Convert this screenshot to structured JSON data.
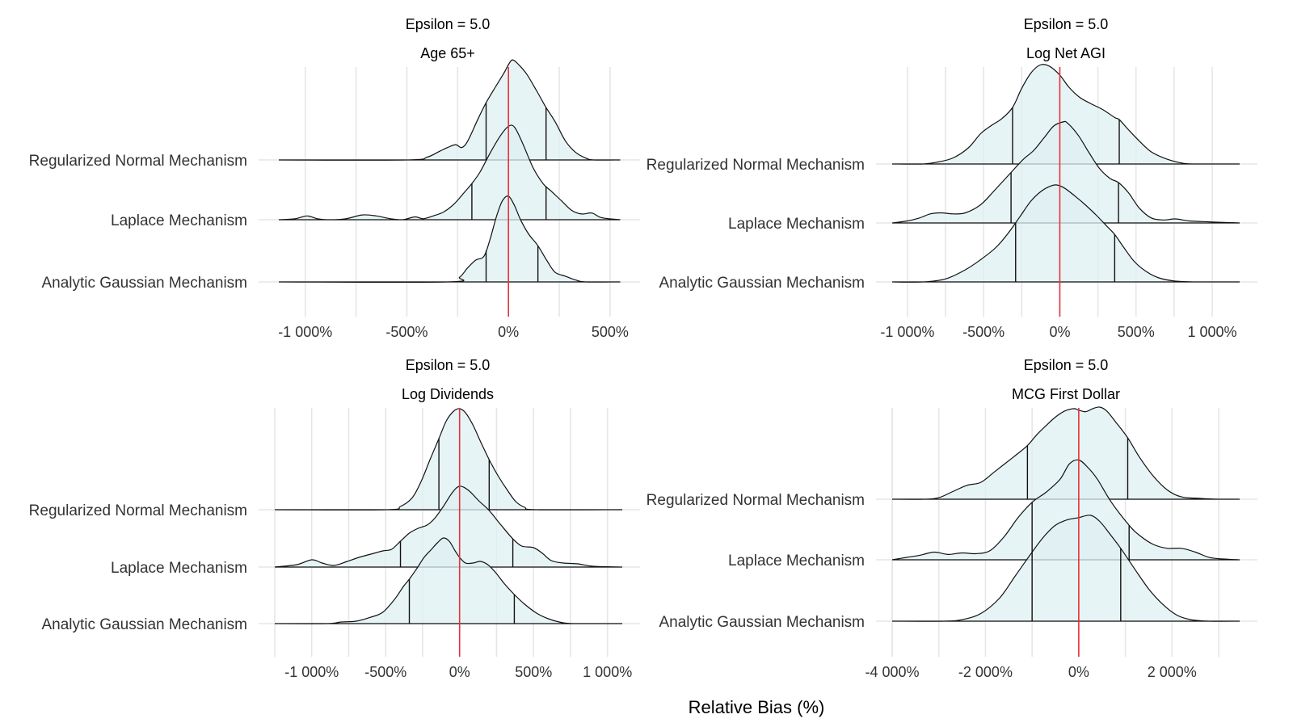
{
  "chart_data": [
    {
      "type": "ridgeline",
      "title": "Epsilon = 5.0",
      "subtitle": "Age 65+",
      "xlabel": "Relative Bias (%)",
      "xlim": [
        -1150,
        560
      ],
      "xticks": [
        -1000,
        -500,
        0,
        500
      ],
      "xtick_labels": [
        "-1 000%",
        "-500%",
        "0%",
        "500%"
      ],
      "minor_grid": [
        -750,
        -250,
        250
      ],
      "reference_line": 0,
      "categories": [
        "Regularized Normal Mechanism",
        "Laplace Mechanism",
        "Analytic Gaussian Mechanism"
      ],
      "series": [
        {
          "name": "Regularized Normal Mechanism",
          "quantiles": [
            -110,
            185
          ],
          "x": [
            -1130,
            -500,
            -400,
            -340,
            -300,
            -260,
            -230,
            -200,
            -150,
            -110,
            -60,
            -20,
            0,
            20,
            50,
            90,
            140,
            185,
            230,
            280,
            330,
            380,
            420,
            550
          ],
          "y": [
            0,
            0,
            0.03,
            0.09,
            0.13,
            0.16,
            0.13,
            0.2,
            0.43,
            0.6,
            0.78,
            0.92,
            1.0,
            1.05,
            1.0,
            0.9,
            0.72,
            0.55,
            0.4,
            0.2,
            0.08,
            0.02,
            0,
            0
          ]
        },
        {
          "name": "Laplace Mechanism",
          "quantiles": [
            -180,
            185
          ],
          "x": [
            -1130,
            -1050,
            -990,
            -940,
            -880,
            -800,
            -720,
            -650,
            -580,
            -520,
            -460,
            -420,
            -370,
            -320,
            -270,
            -220,
            -180,
            -140,
            -90,
            -40,
            0,
            30,
            70,
            120,
            170,
            210,
            260,
            310,
            360,
            410,
            460,
            550
          ],
          "y": [
            0,
            0.01,
            0.04,
            0.01,
            0.0,
            0.01,
            0.05,
            0.04,
            0.01,
            0.0,
            0.03,
            0.01,
            0.04,
            0.08,
            0.16,
            0.28,
            0.38,
            0.5,
            0.7,
            0.88,
            0.98,
            0.97,
            0.8,
            0.55,
            0.38,
            0.3,
            0.2,
            0.1,
            0.06,
            0.07,
            0.02,
            0
          ]
        },
        {
          "name": "Analytic Gaussian Mechanism",
          "quantiles": [
            -110,
            145
          ],
          "x": [
            -1130,
            -300,
            -240,
            -200,
            -160,
            -120,
            -90,
            -60,
            -30,
            0,
            30,
            60,
            100,
            145,
            190,
            230,
            280,
            330,
            380,
            550
          ],
          "y": [
            0,
            0,
            0.05,
            0.15,
            0.23,
            0.27,
            0.45,
            0.68,
            0.85,
            0.9,
            0.8,
            0.65,
            0.5,
            0.38,
            0.22,
            0.1,
            0.06,
            0.02,
            0,
            0
          ]
        }
      ]
    },
    {
      "type": "ridgeline",
      "title": "Epsilon = 5.0",
      "subtitle": "Log Net AGI",
      "xlabel": "Relative Bias (%)",
      "xlim": [
        -1100,
        1180
      ],
      "xticks": [
        -1000,
        -500,
        0,
        500,
        1000
      ],
      "xtick_labels": [
        "-1 000%",
        "-500%",
        "0%",
        "500%",
        "1 000%"
      ],
      "minor_grid": [
        -750,
        -250,
        250,
        750
      ],
      "reference_line": 0,
      "categories": [
        "Regularized Normal Mechanism",
        "Laplace Mechanism",
        "Analytic Gaussian Mechanism"
      ],
      "series": [
        {
          "name": "Regularized Normal Mechanism",
          "quantiles": [
            -310,
            390
          ],
          "x": [
            -1100,
            -900,
            -800,
            -700,
            -600,
            -520,
            -450,
            -380,
            -310,
            -250,
            -190,
            -130,
            -70,
            0,
            60,
            130,
            200,
            280,
            360,
            390,
            450,
            520,
            600,
            700,
            800,
            900,
            1180
          ],
          "y": [
            0,
            0,
            0.02,
            0.06,
            0.16,
            0.3,
            0.38,
            0.45,
            0.56,
            0.75,
            0.9,
            0.98,
            0.97,
            0.88,
            0.76,
            0.66,
            0.6,
            0.54,
            0.46,
            0.44,
            0.34,
            0.23,
            0.12,
            0.05,
            0.01,
            0,
            0
          ]
        },
        {
          "name": "Laplace Mechanism",
          "quantiles": [
            -320,
            385
          ],
          "x": [
            -1100,
            -1000,
            -920,
            -850,
            -780,
            -700,
            -620,
            -520,
            -430,
            -320,
            -240,
            -170,
            -100,
            -40,
            20,
            50,
            120,
            190,
            260,
            330,
            385,
            450,
            520,
            600,
            680,
            760,
            850,
            1000,
            1180
          ],
          "y": [
            0,
            0.02,
            0.05,
            0.09,
            0.1,
            0.09,
            0.1,
            0.18,
            0.32,
            0.5,
            0.63,
            0.72,
            0.85,
            0.96,
            1.0,
            0.99,
            0.87,
            0.7,
            0.54,
            0.44,
            0.4,
            0.3,
            0.15,
            0.05,
            0.03,
            0.04,
            0.02,
            0.01,
            0
          ]
        },
        {
          "name": "Analytic Gaussian Mechanism",
          "quantiles": [
            -290,
            360
          ],
          "x": [
            -1100,
            -900,
            -750,
            -620,
            -520,
            -420,
            -340,
            -260,
            -190,
            -120,
            -60,
            -20,
            30,
            100,
            170,
            240,
            310,
            360,
            420,
            490,
            570,
            650,
            750,
            900,
            1180
          ],
          "y": [
            0,
            0,
            0.03,
            0.12,
            0.22,
            0.34,
            0.48,
            0.65,
            0.8,
            0.9,
            0.95,
            0.96,
            0.93,
            0.85,
            0.76,
            0.66,
            0.55,
            0.47,
            0.34,
            0.2,
            0.1,
            0.04,
            0.01,
            0,
            0
          ]
        }
      ]
    },
    {
      "type": "ridgeline",
      "title": "Epsilon = 5.0",
      "subtitle": "Log Dividends",
      "xlabel": "Relative Bias (%)",
      "xlim": [
        -1250,
        1100
      ],
      "xticks": [
        -1000,
        -500,
        0,
        500,
        1000
      ],
      "xtick_labels": [
        "-1 000%",
        "-500%",
        "0%",
        "500%",
        "1 000%"
      ],
      "minor_grid": [
        -1250,
        -750,
        -250,
        250,
        750
      ],
      "reference_line": 0,
      "categories": [
        "Regularized Normal Mechanism",
        "Laplace Mechanism",
        "Analytic Gaussian Mechanism"
      ],
      "series": [
        {
          "name": "Regularized Normal Mechanism",
          "quantiles": [
            -140,
            200
          ],
          "x": [
            -1250,
            -500,
            -400,
            -320,
            -260,
            -200,
            -140,
            -90,
            -40,
            0,
            40,
            90,
            140,
            200,
            260,
            320,
            380,
            440,
            520,
            1100
          ],
          "y": [
            0,
            0,
            0.04,
            0.15,
            0.35,
            0.62,
            0.88,
            1.1,
            1.22,
            1.25,
            1.2,
            1.05,
            0.85,
            0.62,
            0.42,
            0.25,
            0.1,
            0.03,
            0,
            0
          ]
        },
        {
          "name": "Laplace Mechanism",
          "quantiles": [
            -400,
            360
          ],
          "x": [
            -1250,
            -1100,
            -1000,
            -930,
            -850,
            -760,
            -680,
            -600,
            -520,
            -460,
            -400,
            -340,
            -280,
            -220,
            -170,
            -110,
            -50,
            0,
            60,
            130,
            200,
            280,
            360,
            420,
            500,
            560,
            620,
            700,
            800,
            900,
            1100
          ],
          "y": [
            0,
            0.03,
            0.09,
            0.05,
            0.02,
            0.07,
            0.12,
            0.16,
            0.2,
            0.22,
            0.32,
            0.42,
            0.48,
            0.52,
            0.6,
            0.75,
            0.92,
            1.0,
            0.95,
            0.82,
            0.7,
            0.52,
            0.35,
            0.26,
            0.24,
            0.17,
            0.08,
            0.05,
            0.04,
            0.01,
            0
          ]
        },
        {
          "name": "Analytic Gaussian Mechanism",
          "quantiles": [
            -340,
            370
          ],
          "x": [
            -1250,
            -900,
            -800,
            -700,
            -600,
            -520,
            -440,
            -380,
            -340,
            -290,
            -240,
            -190,
            -150,
            -110,
            -70,
            -30,
            0,
            40,
            90,
            140,
            190,
            240,
            300,
            370,
            440,
            520,
            600,
            700,
            800,
            1100
          ],
          "y": [
            0,
            0,
            0.02,
            0.03,
            0.08,
            0.14,
            0.3,
            0.46,
            0.55,
            0.68,
            0.82,
            0.92,
            1.0,
            1.06,
            1.02,
            0.9,
            0.82,
            0.75,
            0.75,
            0.77,
            0.73,
            0.64,
            0.5,
            0.36,
            0.24,
            0.13,
            0.06,
            0.01,
            0,
            0
          ]
        }
      ]
    },
    {
      "type": "ridgeline",
      "title": "Epsilon = 5.0",
      "subtitle": "MCG First Dollar",
      "xlabel": "Relative Bias (%)",
      "xlim": [
        -4000,
        3450
      ],
      "xticks": [
        -4000,
        -2000,
        0,
        2000
      ],
      "xtick_labels": [
        "-4 000%",
        "-2 000%",
        "0%",
        "2 000%"
      ],
      "minor_grid": [
        -4000,
        -3000,
        -1000,
        1000,
        3000
      ],
      "reference_line": 0,
      "categories": [
        "Regularized Normal Mechanism",
        "Laplace Mechanism",
        "Analytic Gaussian Mechanism"
      ],
      "series": [
        {
          "name": "Regularized Normal Mechanism",
          "quantiles": [
            -1100,
            1050
          ],
          "x": [
            -4000,
            -3300,
            -3000,
            -2700,
            -2400,
            -2100,
            -1800,
            -1400,
            -1100,
            -900,
            -700,
            -500,
            -300,
            -100,
            0,
            150,
            300,
            450,
            600,
            800,
            1050,
            1300,
            1600,
            1900,
            2200,
            2600,
            3000,
            3450
          ],
          "y": [
            0,
            0,
            0.02,
            0.1,
            0.18,
            0.22,
            0.36,
            0.55,
            0.7,
            0.84,
            0.96,
            1.07,
            1.15,
            1.18,
            1.16,
            1.14,
            1.18,
            1.2,
            1.15,
            1.0,
            0.8,
            0.55,
            0.3,
            0.12,
            0.03,
            0.01,
            0,
            0
          ]
        },
        {
          "name": "Laplace Mechanism",
          "quantiles": [
            -1000,
            1080
          ],
          "x": [
            -4000,
            -3700,
            -3400,
            -3100,
            -2800,
            -2500,
            -2200,
            -1900,
            -1600,
            -1300,
            -1000,
            -700,
            -400,
            -200,
            0,
            200,
            400,
            700,
            1080,
            1300,
            1600,
            1900,
            2200,
            2500,
            2800,
            3100,
            3450
          ],
          "y": [
            0,
            0.03,
            0.06,
            0.1,
            0.07,
            0.09,
            0.08,
            0.12,
            0.3,
            0.55,
            0.75,
            0.88,
            1.05,
            1.25,
            1.3,
            1.2,
            1.05,
            0.75,
            0.45,
            0.32,
            0.2,
            0.15,
            0.15,
            0.1,
            0.03,
            0.01,
            0
          ]
        },
        {
          "name": "Analytic Gaussian Mechanism",
          "quantiles": [
            -1000,
            900
          ],
          "x": [
            -4000,
            -2900,
            -2500,
            -2100,
            -1700,
            -1350,
            -1000,
            -750,
            -500,
            -250,
            0,
            250,
            450,
            650,
            900,
            1200,
            1500,
            1800,
            2100,
            2400,
            2800,
            3450
          ],
          "y": [
            0,
            0,
            0.02,
            0.1,
            0.3,
            0.6,
            0.9,
            1.1,
            1.25,
            1.32,
            1.35,
            1.38,
            1.3,
            1.15,
            0.95,
            0.68,
            0.42,
            0.22,
            0.08,
            0.02,
            0,
            0
          ]
        }
      ]
    }
  ]
}
